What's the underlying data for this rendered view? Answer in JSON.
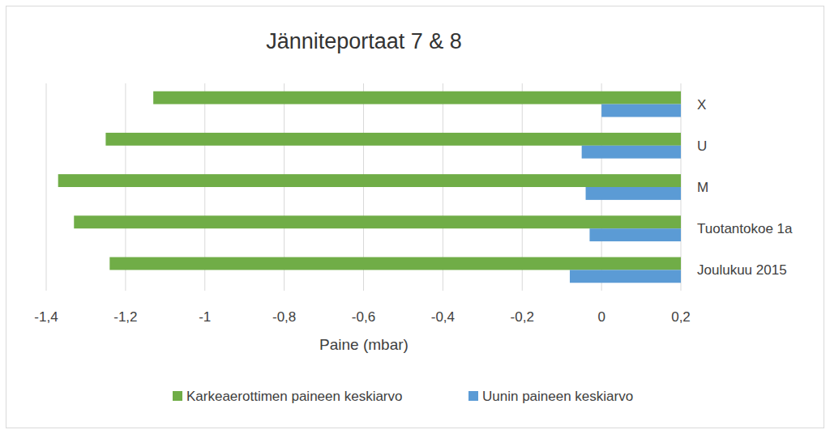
{
  "chart_data": {
    "type": "bar",
    "orientation": "horizontal",
    "title": "Jänniteportaat 7 & 8",
    "x_label": "Paine (mbar)",
    "categories": [
      "X",
      "U",
      "M",
      "Tuotantokoe 1a",
      "Joulukuu 2015"
    ],
    "series": [
      {
        "name": "Karkeaerottimen paineen keskiarvo",
        "color": "#70ad47",
        "values": [
          -1.13,
          -1.25,
          -1.37,
          -1.33,
          -1.24
        ]
      },
      {
        "name": "Uunin paineen keskiarvo",
        "color": "#5b9bd5",
        "values": [
          0.0,
          -0.05,
          -0.04,
          -0.03,
          -0.08
        ]
      }
    ],
    "xlim": [
      -1.4,
      0.2
    ],
    "xticks": [
      {
        "value": -1.4,
        "label": "-1,4"
      },
      {
        "value": -1.2,
        "label": "-1,2"
      },
      -1,
      {
        "value": -0.8,
        "label": "-0,8"
      },
      {
        "value": -0.6,
        "label": "-0,6"
      },
      {
        "value": -0.4,
        "label": "-0,4"
      },
      {
        "value": -0.2,
        "label": "-0,2"
      },
      0,
      {
        "value": 0.2,
        "label": "0,2"
      }
    ],
    "grid": true,
    "legend": "bottom"
  }
}
